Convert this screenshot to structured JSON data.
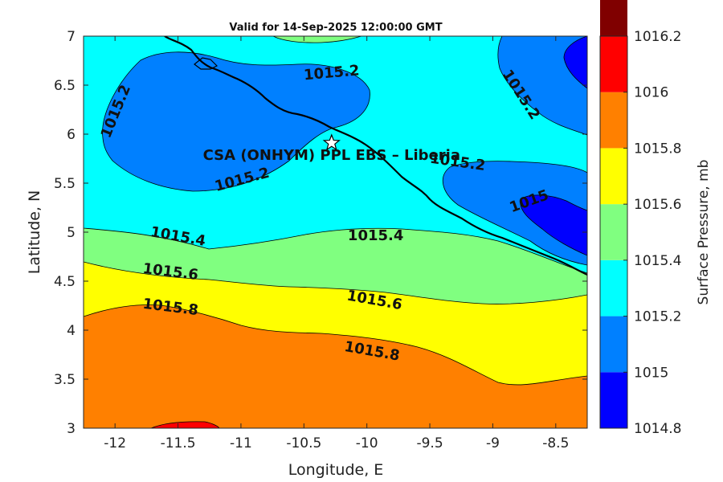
{
  "chart_data": {
    "type": "contour",
    "title": "Valid for 14-Sep-2025 12:00:00 GMT",
    "xlabel": "Longitude, E",
    "ylabel": "Latitude, N",
    "xlim": [
      -12.25,
      -8.25
    ],
    "ylim": [
      3,
      7
    ],
    "xticks": [
      -12,
      -11.5,
      -11,
      -10.5,
      -10,
      -9.5,
      -9,
      -8.5
    ],
    "xtick_labels": [
      "-12",
      "-11.5",
      "-11",
      "-10.5",
      "-10",
      "-9.5",
      "-9",
      "-8.5"
    ],
    "yticks": [
      3,
      3.5,
      4,
      4.5,
      5,
      5.5,
      6,
      6.5,
      7
    ],
    "ytick_labels": [
      "3",
      "3.5",
      "4",
      "4.5",
      "5",
      "5.5",
      "6",
      "6.5",
      "7"
    ],
    "colorbar": {
      "title": "Surface Pressure, mb",
      "levels": [
        1014.8,
        1015,
        1015.2,
        1015.4,
        1015.6,
        1015.8,
        1016,
        1016.2
      ],
      "level_labels": [
        "1014.8",
        "1015",
        "1015.2",
        "1015.4",
        "1015.6",
        "1015.8",
        "1016",
        "1016.2"
      ],
      "colors": [
        "#0000ff",
        "#0080ff",
        "#00ffff",
        "#80ff80",
        "#ffff00",
        "#ff8000",
        "#ff0000",
        "#800000"
      ]
    },
    "contour_labels": [
      {
        "text": "1015.2",
        "lon": -10.28,
        "lat": 6.62,
        "angle": -5
      },
      {
        "text": "1015.2",
        "lon": -11.99,
        "lat": 6.23,
        "angle": -68
      },
      {
        "text": "1015.2",
        "lon": -10.99,
        "lat": 5.53,
        "angle": -15
      },
      {
        "text": "1015.2",
        "lon": -8.78,
        "lat": 6.4,
        "angle": 57
      },
      {
        "text": "1015.2",
        "lon": -9.28,
        "lat": 5.71,
        "angle": 8
      },
      {
        "text": "1015",
        "lon": -8.71,
        "lat": 5.31,
        "angle": -20
      },
      {
        "text": "1015.4",
        "lon": -11.5,
        "lat": 4.95,
        "angle": 10
      },
      {
        "text": "1015.4",
        "lon": -9.93,
        "lat": 4.96,
        "angle": 0
      },
      {
        "text": "1015.6",
        "lon": -11.56,
        "lat": 4.59,
        "angle": 7
      },
      {
        "text": "1015.6",
        "lon": -9.94,
        "lat": 4.3,
        "angle": 10
      },
      {
        "text": "1015.8",
        "lon": -11.56,
        "lat": 4.23,
        "angle": 7
      },
      {
        "text": "1015.8",
        "lon": -9.96,
        "lat": 3.78,
        "angle": 10
      }
    ],
    "station": {
      "name": "CSA (ONHYM) PPL EBS  – Liberia",
      "lon": -10.28,
      "lat": 5.91
    }
  }
}
